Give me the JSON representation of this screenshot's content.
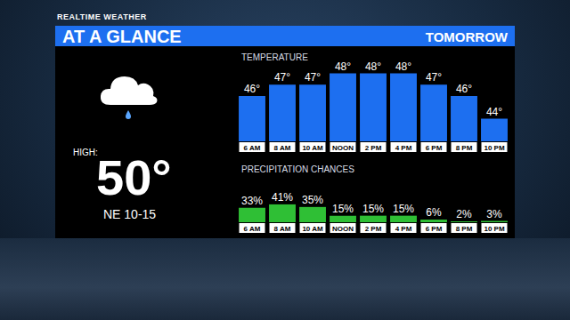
{
  "header": {
    "brand": "REALTIME WEATHER",
    "title": "AT A GLANCE",
    "period": "TOMORROW"
  },
  "summary": {
    "high_label": "HIGH:",
    "high": "50°",
    "wind": "NE 10-15"
  },
  "chart_data": [
    {
      "type": "bar",
      "title": "TEMPERATURE",
      "categories": [
        "6 AM",
        "8 AM",
        "10 AM",
        "NOON",
        "2 PM",
        "4 PM",
        "6 PM",
        "8 PM",
        "10 PM"
      ],
      "values": [
        46,
        47,
        47,
        48,
        48,
        48,
        47,
        46,
        44
      ],
      "value_labels": [
        "46°",
        "47°",
        "47°",
        "48°",
        "48°",
        "48°",
        "47°",
        "46°",
        "44°"
      ],
      "data_labels": true,
      "color": "#1d6ff0",
      "ylim": [
        42,
        50
      ],
      "tick_labels": "x"
    },
    {
      "type": "bar",
      "title": "PRECIPITATION CHANCES",
      "categories": [
        "6 AM",
        "8 AM",
        "10 AM",
        "NOON",
        "2 PM",
        "4 PM",
        "6 PM",
        "8 PM",
        "10 PM"
      ],
      "values": [
        33,
        41,
        35,
        15,
        15,
        15,
        6,
        2,
        3
      ],
      "value_labels": [
        "33%",
        "41%",
        "35%",
        "15%",
        "15%",
        "15%",
        "6%",
        "2%",
        "3%"
      ],
      "data_labels": true,
      "color": "#2fbf35",
      "ylim": [
        0,
        100
      ],
      "tick_labels": "x"
    }
  ]
}
